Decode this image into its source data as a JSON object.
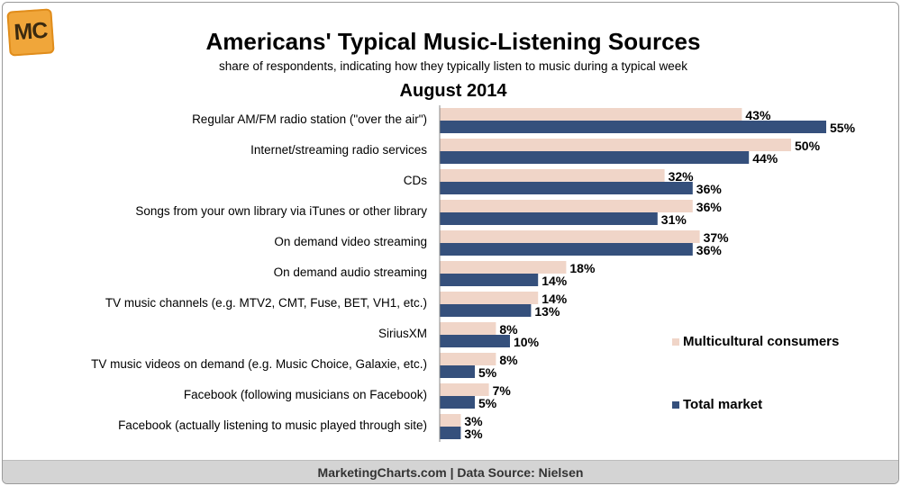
{
  "branding": {
    "logo_text": "MC"
  },
  "footer": {
    "text": "MarketingCharts.com | Data Source: Nielsen"
  },
  "colors": {
    "multicultural": "#f0d5c8",
    "total": "#35507c"
  },
  "chart_data": {
    "type": "bar",
    "orientation": "horizontal",
    "title": "Americans' Typical Music-Listening Sources",
    "subtitle": "share of respondents, indicating how they typically listen to music during a typical week",
    "period": "August 2014",
    "categories": [
      "Regular AM/FM radio station (\"over the air\")",
      "Internet/streaming radio services",
      "CDs",
      "Songs from your own library via iTunes or other library",
      "On demand video streaming",
      "On demand audio streaming",
      "TV music channels (e.g. MTV2, CMT, Fuse, BET, VH1, etc.)",
      "SiriusXM",
      "TV music videos on demand (e.g. Music Choice, Galaxie, etc.)",
      "Facebook (following musicians on Facebook)",
      "Facebook (actually listening to music played through site)"
    ],
    "series": [
      {
        "name": "Multicultural consumers",
        "values": [
          43,
          50,
          32,
          36,
          37,
          18,
          14,
          8,
          8,
          7,
          3
        ]
      },
      {
        "name": "Total market",
        "values": [
          55,
          44,
          36,
          31,
          36,
          14,
          13,
          10,
          5,
          5,
          3
        ]
      }
    ],
    "value_suffix": "%",
    "xlim": [
      0,
      100
    ],
    "grid": false,
    "legend_position": "right"
  }
}
